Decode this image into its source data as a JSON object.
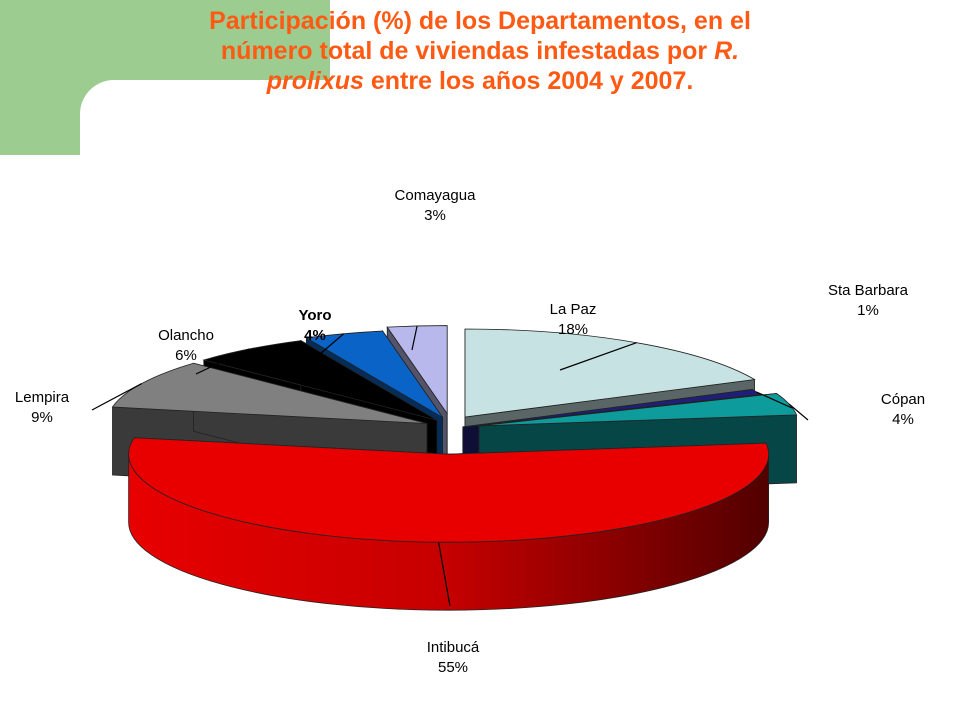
{
  "title": {
    "line1": "Participación (%) de los Departamentos, en el",
    "line2_a": "número total de viviendas infestadas por ",
    "line2_b": "R.",
    "line3_a": "prolixus",
    "line3_b": " entre los años 2004 y 2007."
  },
  "chart_data": {
    "type": "pie",
    "title": "Participación (%) de los Departamentos, en el número total de viviendas infestadas por R. prolixus entre los años 2004 y 2007.",
    "slices": [
      {
        "name": "La Paz",
        "value": 18,
        "label": "18%",
        "color": "#c7e2e2"
      },
      {
        "name": "Sta Barbara",
        "value": 1,
        "label": "1%",
        "color": "#1f1f7a"
      },
      {
        "name": "Cópan",
        "value": 4,
        "label": "4%",
        "color": "#0e9b9b"
      },
      {
        "name": "Intibucá",
        "value": 55,
        "label": "55%",
        "color": "#e80000"
      },
      {
        "name": "Lempira",
        "value": 9,
        "label": "9%",
        "color": "#808080"
      },
      {
        "name": "Olancho",
        "value": 6,
        "label": "6%",
        "color": "#000000"
      },
      {
        "name": "Yoro",
        "value": 4,
        "label": "4%",
        "color": "#0a64c8"
      },
      {
        "name": "Comayagua",
        "value": 3,
        "label": "3%",
        "color": "#b8b8ec"
      }
    ],
    "style": "3d-exploded"
  }
}
